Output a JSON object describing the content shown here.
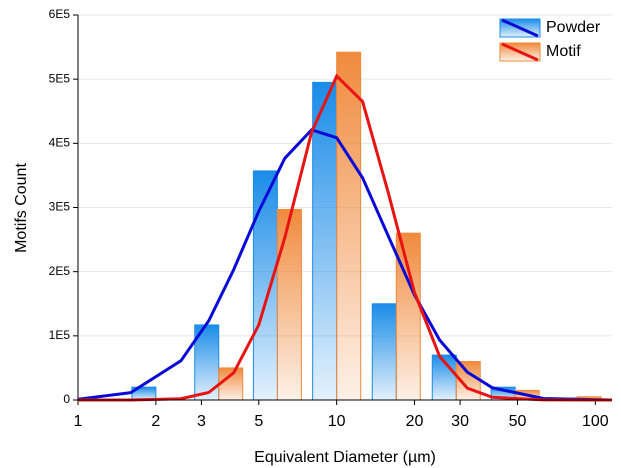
{
  "chart_data": {
    "type": "bar",
    "x_label": "Equivalent Diameter (µm)",
    "y_label": "Motifs Count",
    "log_x": true,
    "grid": true,
    "legend": "top-right",
    "xlim": [
      1,
      116
    ],
    "xticks": [
      1,
      2,
      3,
      5,
      10,
      20,
      30,
      50,
      100
    ],
    "ylim": [
      0,
      600000
    ],
    "yticks": [
      0,
      {
        "value": 100000,
        "label": "1E5"
      },
      {
        "value": 200000,
        "label": "2E5"
      },
      {
        "value": 300000,
        "label": "3E5"
      },
      {
        "value": 400000,
        "label": "4E5"
      },
      {
        "value": 500000,
        "label": "5E5"
      },
      {
        "value": 600000,
        "label": "6E5"
      }
    ],
    "x": [
      2,
      3.5,
      5.9,
      10,
      17,
      29,
      49,
      85
    ],
    "fit_x": [
      1,
      1.6,
      2.5,
      3.2,
      4,
      5,
      6.3,
      8,
      10,
      12.6,
      15.8,
      20,
      25,
      32,
      40,
      63,
      116
    ],
    "series": [
      {
        "name": "Powder",
        "color": "#1a8ce8",
        "line_color": "#0a0ad8",
        "values": [
          20000,
          117000,
          357000,
          495000,
          150000,
          70000,
          20000,
          3000
        ],
        "fit_values": [
          1130,
          11460,
          61160,
          123260,
          203250,
          294240,
          376680,
          421050,
          408630,
          346140,
          256560,
          163700,
          93570,
          43440,
          18950,
          2360,
          61
        ]
      },
      {
        "name": "Motif",
        "color": "#f08a3c",
        "line_color": "#e81414",
        "values": [
          2000,
          50000,
          297000,
          542000,
          260000,
          60000,
          15000,
          5000
        ],
        "fit_values": [
          0,
          40,
          2100,
          11710,
          42420,
          117150,
          252980,
          417220,
          504850,
          465070,
          324610,
          167590,
          68070,
          18540,
          4270,
          100,
          0
        ]
      }
    ]
  }
}
